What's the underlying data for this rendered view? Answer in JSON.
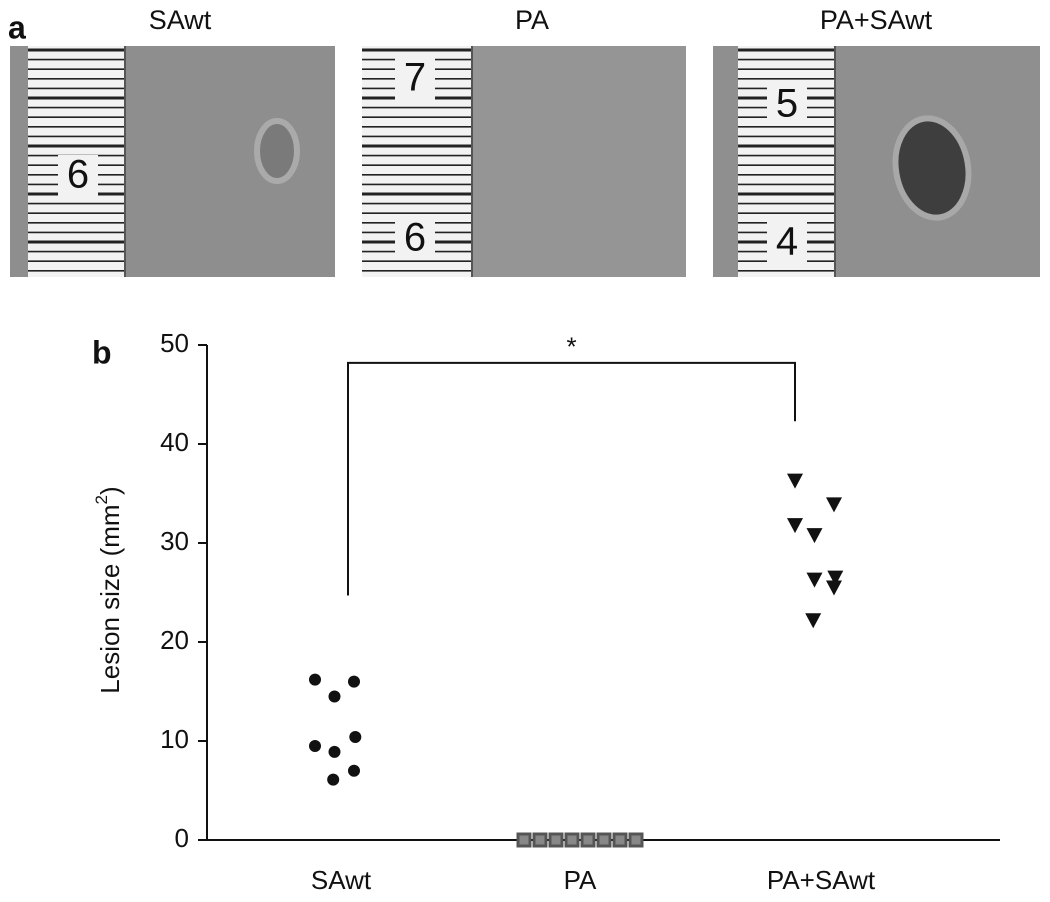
{
  "panel_a": {
    "label": "a",
    "photos": [
      {
        "title": "SAwt",
        "ruler_numbers": [
          "6"
        ]
      },
      {
        "title": "PA",
        "ruler_numbers": [
          "7",
          "6"
        ]
      },
      {
        "title": "PA+SAwt",
        "ruler_numbers": [
          "5",
          "4"
        ]
      }
    ]
  },
  "chart_data": {
    "type": "scatter",
    "panel_label": "b",
    "ylabel": {
      "text": "Lesion size (mm",
      "superscript": "2",
      "suffix": ")"
    },
    "categories": [
      "SAwt",
      "PA",
      "PA+SAwt"
    ],
    "series": [
      {
        "marker": "circle",
        "color": "#111111",
        "values": [
          16.2,
          16.0,
          14.5,
          9.5,
          8.9,
          10.4,
          7.0,
          6.1
        ]
      },
      {
        "marker": "square",
        "color": "#555555",
        "values": [
          0,
          0,
          0,
          0,
          0,
          0,
          0,
          0
        ]
      },
      {
        "marker": "triangle-down",
        "color": "#111111",
        "values": [
          36.3,
          33.9,
          30.8,
          31.8,
          26.3,
          26.5,
          25.5,
          22.2
        ]
      }
    ],
    "ylim": [
      0,
      50
    ],
    "yticks": [
      0,
      10,
      20,
      30,
      40,
      50
    ],
    "annotations": [
      {
        "text": "*",
        "categories": [
          0,
          2
        ],
        "y": 48.2,
        "ends": [
          24.7,
          42.3
        ]
      }
    ]
  }
}
